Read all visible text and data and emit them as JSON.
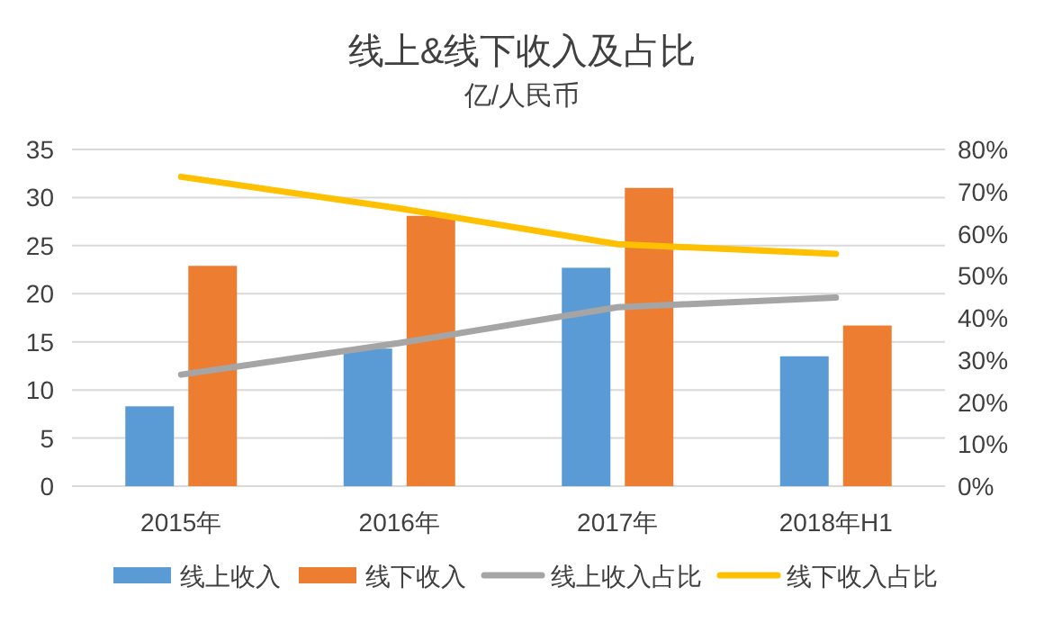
{
  "chart_data": {
    "type": "bar",
    "title": "线上&线下收入及占比",
    "subtitle": "亿/人民币",
    "categories": [
      "2015年",
      "2016年",
      "2017年",
      "2018年H1"
    ],
    "series": [
      {
        "name": "线上收入",
        "color": "#5b9bd5",
        "values": [
          8.3,
          14.3,
          22.7,
          13.5
        ]
      },
      {
        "name": "线下收入",
        "color": "#ed7d31",
        "values": [
          22.9,
          28.1,
          31.0,
          16.7
        ]
      },
      {
        "name": "线上收入占比",
        "type": "line",
        "axis": "y2",
        "color": "#a5a5a5",
        "values": [
          26.5,
          34,
          42.5,
          44.8
        ]
      },
      {
        "name": "线下收入占比",
        "type": "line",
        "axis": "y2",
        "color": "#ffc000",
        "values": [
          73.5,
          66,
          57.5,
          55.2
        ]
      }
    ],
    "ylim": [
      0,
      35
    ],
    "yticks": [
      0,
      5,
      10,
      15,
      20,
      25,
      30,
      35
    ],
    "y2lim": [
      0,
      80
    ],
    "y2ticks": [
      {
        "value": 0,
        "label": "0%"
      },
      {
        "value": 10,
        "label": "10%"
      },
      {
        "value": 20,
        "label": "20%"
      },
      {
        "value": 30,
        "label": "30%"
      },
      {
        "value": 40,
        "label": "40%"
      },
      {
        "value": 50,
        "label": "50%"
      },
      {
        "value": 60,
        "label": "60%"
      },
      {
        "value": 70,
        "label": "70%"
      },
      {
        "value": 80,
        "label": "80%"
      }
    ],
    "grid": "y",
    "legend": "bottom"
  }
}
